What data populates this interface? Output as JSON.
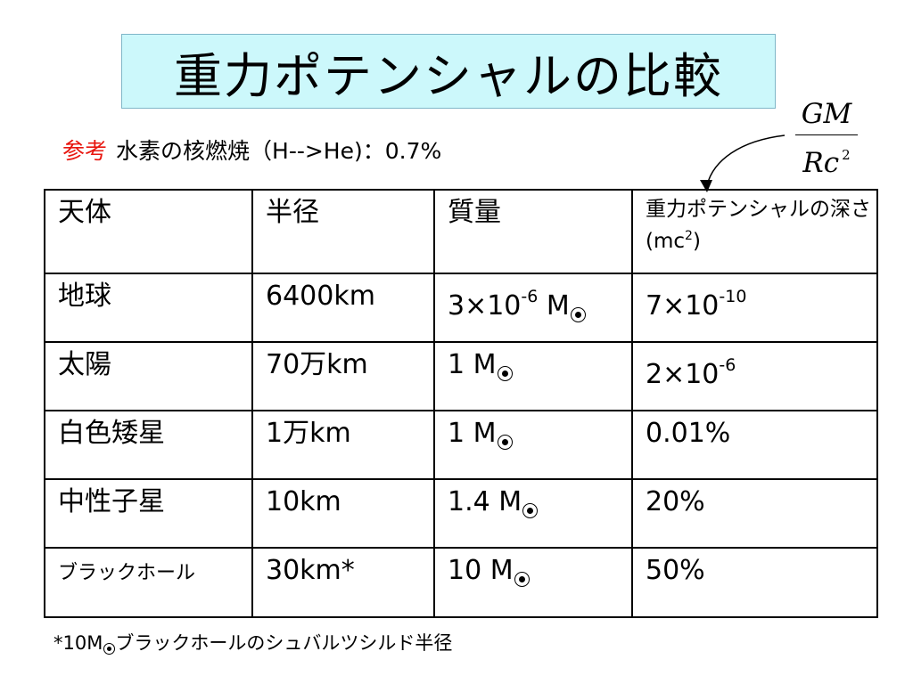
{
  "title": "重力ポテンシャルの比較",
  "reference": {
    "label": "参考",
    "text": "水素の核燃焼（H-->He)：0.7%"
  },
  "formula": {
    "numerator": "GM",
    "denominator": "Rc",
    "exponent": "2"
  },
  "table": {
    "headers": {
      "object": "天体",
      "radius": "半径",
      "mass": "質量",
      "depth": "重力ポテンシャルの深さ(mc",
      "depth_exp": "2",
      "depth_close": ")"
    },
    "rows": [
      {
        "object": "地球",
        "radius": "6400km",
        "mass_coef": "3×10",
        "mass_exp": "-6",
        "mass_unit": "M",
        "depth": "7×10",
        "depth_exp": "-10"
      },
      {
        "object": "太陽",
        "radius": "70万km",
        "mass_coef": "1",
        "mass_unit": "M",
        "depth": "2×10",
        "depth_exp": "-6"
      },
      {
        "object": "白色矮星",
        "radius": "1万km",
        "mass_coef": "1",
        "mass_unit": "M",
        "depth": "0.01%"
      },
      {
        "object": "中性子星",
        "radius": "10km",
        "mass_coef": "1.4",
        "mass_unit": "M",
        "depth": "20%"
      },
      {
        "object": "ブラックホール",
        "radius": "30km*",
        "mass_coef": "10",
        "mass_unit": "M",
        "depth": "50%"
      }
    ]
  },
  "footnote": {
    "prefix": "*10M",
    "text": "ブラックホールのシュバルツシルド半径"
  }
}
